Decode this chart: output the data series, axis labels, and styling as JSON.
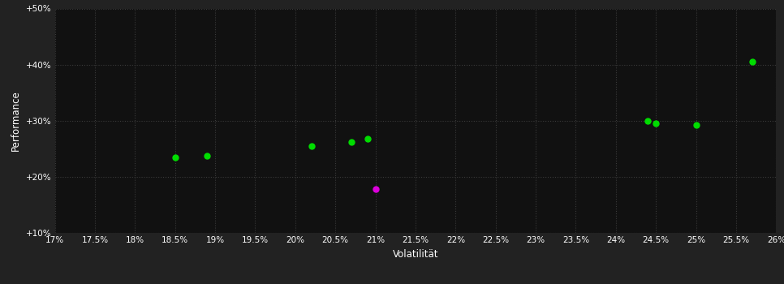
{
  "background_color": "#222222",
  "plot_bg_color": "#111111",
  "grid_color": "#3a3a3a",
  "text_color": "#ffffff",
  "xlabel": "Volatilität",
  "ylabel": "Performance",
  "xlim": [
    0.17,
    0.26
  ],
  "ylim": [
    0.1,
    0.5
  ],
  "xticks": [
    0.17,
    0.175,
    0.18,
    0.185,
    0.19,
    0.195,
    0.2,
    0.205,
    0.21,
    0.215,
    0.22,
    0.225,
    0.23,
    0.235,
    0.24,
    0.245,
    0.25,
    0.255,
    0.26
  ],
  "yticks": [
    0.1,
    0.2,
    0.3,
    0.4,
    0.5
  ],
  "green_points": [
    [
      0.185,
      0.235
    ],
    [
      0.189,
      0.237
    ],
    [
      0.202,
      0.255
    ],
    [
      0.207,
      0.262
    ],
    [
      0.209,
      0.268
    ],
    [
      0.244,
      0.3
    ],
    [
      0.245,
      0.296
    ],
    [
      0.25,
      0.292
    ],
    [
      0.257,
      0.405
    ]
  ],
  "magenta_points": [
    [
      0.21,
      0.178
    ]
  ],
  "point_size": 25,
  "green_color": "#00dd00",
  "magenta_color": "#dd00dd",
  "tick_fontsize": 7.5,
  "label_fontsize": 8.5
}
